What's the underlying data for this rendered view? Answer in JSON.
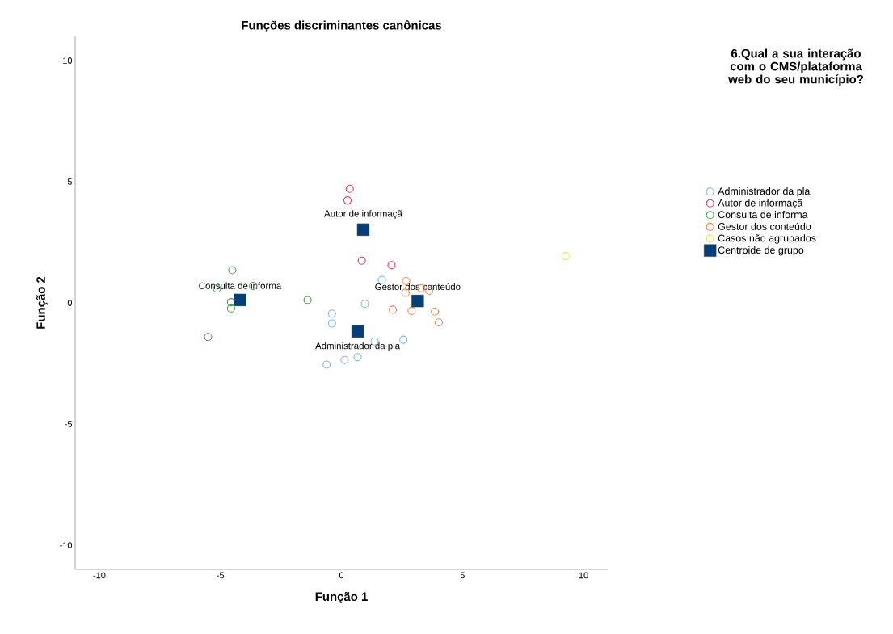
{
  "chart_data": {
    "type": "scatter",
    "title": "Funções discriminantes canônicas",
    "xlabel": "Função 1",
    "ylabel": "Função 2",
    "legend_title": "6.Qual a sua interação com o CMS/plataforma web do seu município?",
    "legend": "right",
    "marker": "circle",
    "grid": false,
    "xlim": [
      -11,
      11
    ],
    "ylim": [
      -11,
      11
    ],
    "xticks": [
      -10,
      -5,
      0,
      5,
      10
    ],
    "yticks": [
      -10,
      -5,
      0,
      5,
      10
    ],
    "series": [
      {
        "name": "Administrador da pla",
        "color": "#7fb2f0",
        "x": [
          1.67,
          0.97,
          -0.39,
          -0.39,
          1.37,
          2.56,
          -0.61,
          0.13,
          0.67
        ],
        "values": [
          0.95,
          -0.04,
          -0.44,
          -0.85,
          -1.59,
          -1.52,
          -2.55,
          -2.36,
          -2.24
        ]
      },
      {
        "name": "Autor de informaçã",
        "color": "#e0335a",
        "x": [
          0.34,
          0.25,
          0.84,
          2.07
        ],
        "values": [
          4.71,
          4.23,
          1.74,
          1.56
        ]
      },
      {
        "name": "Consulta de informa",
        "color": "#4aa04a",
        "x": [
          -4.51,
          -5.14,
          -3.65,
          -4.56,
          -4.56,
          -4.23,
          -1.4,
          -5.51
        ],
        "values": [
          1.35,
          0.59,
          0.7,
          0.03,
          -0.23,
          null,
          0.12,
          -1.41
        ]
      },
      {
        "name": "Gestor dos conteúdo",
        "color": "#f7864e",
        "x": [
          2.67,
          2.65,
          3.3,
          3.63,
          2.12,
          2.9,
          3.86,
          4.02
        ],
        "values": [
          0.9,
          0.42,
          0.61,
          0.5,
          -0.28,
          -0.33,
          -0.36,
          -0.81
        ]
      },
      {
        "name": "Casos não agrupados",
        "color": "#e8e84a",
        "x": [
          9.26
        ],
        "values": [
          1.93
        ]
      },
      {
        "name": "Centroide de grupo",
        "color": "#063f78",
        "marker": "square",
        "x": [
          0.67,
          0.9,
          -4.19,
          3.15
        ],
        "values": [
          -1.18,
          3.02,
          0.12,
          0.08
        ]
      }
    ],
    "annotations": [
      {
        "text": "Administrador da pla",
        "x": 0.67,
        "y": -1.18
      },
      {
        "text": "Autor de informaçã",
        "x": 0.9,
        "y": 3.02
      },
      {
        "text": "Consulta de informa",
        "x": -4.19,
        "y": 0.12
      },
      {
        "text": "Gestor dos conteúdo",
        "x": 3.15,
        "y": 0.08
      }
    ]
  }
}
